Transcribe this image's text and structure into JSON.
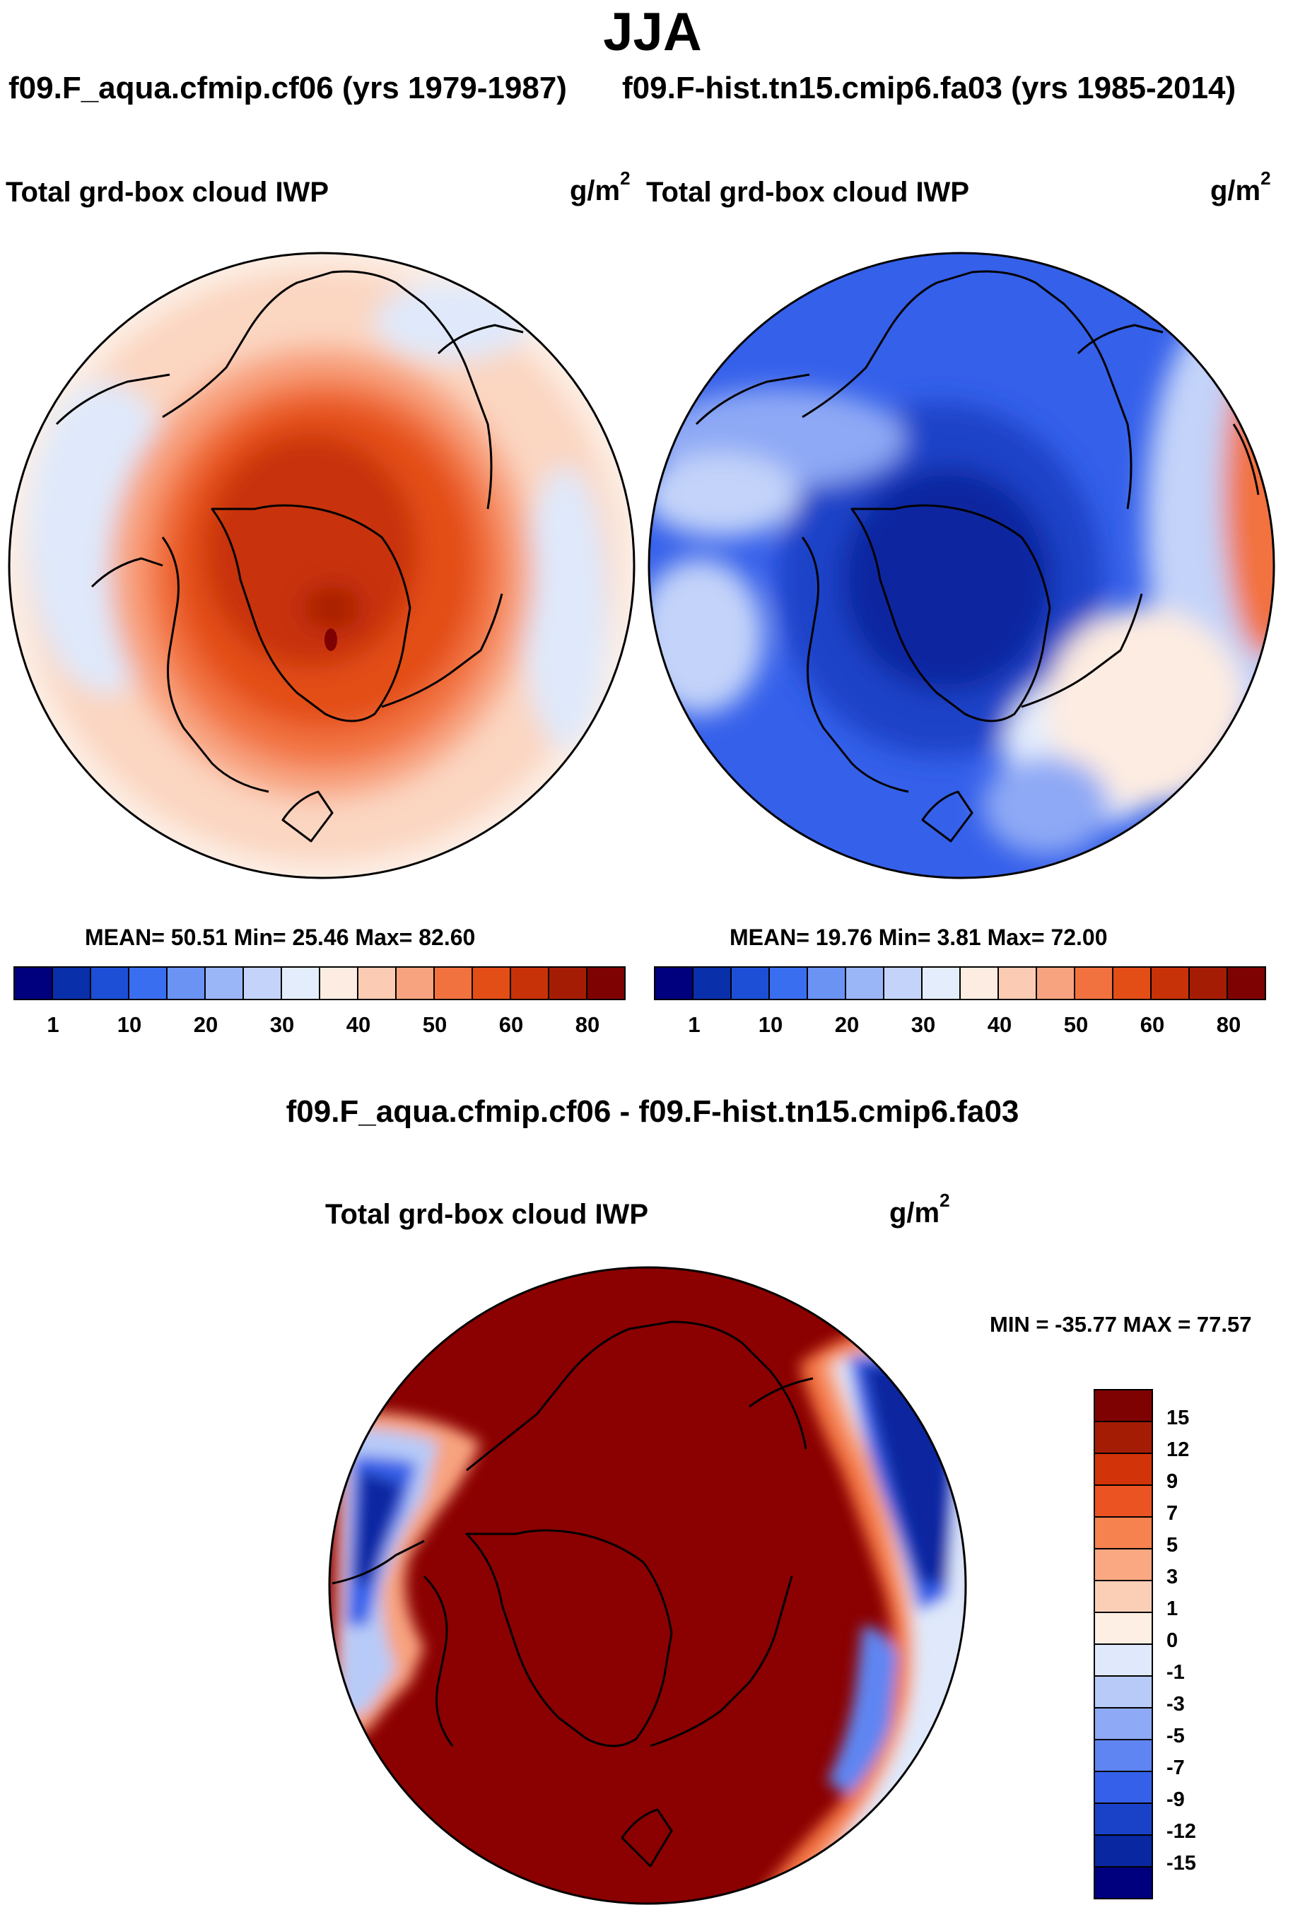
{
  "figure_title": "JJA",
  "left_panel": {
    "case": "f09.F_aqua.cfmip.cf06 (yrs 1979-1987)",
    "variable": "Total grd-box cloud IWP",
    "units_base": "g/m",
    "units_exp": "2",
    "stats": "MEAN=  50.51  Min=  25.46  Max=  82.60"
  },
  "right_panel": {
    "case": "f09.F-hist.tn15.cmip6.fa03 (yrs 1985-2014)",
    "variable": "Total grd-box cloud IWP",
    "units_base": "g/m",
    "units_exp": "2",
    "stats": "MEAN=  19.76  Min=   3.81  Max=  72.00"
  },
  "abs_colorbar": {
    "colors": [
      "#00007f",
      "#0a2faa",
      "#1c4fd6",
      "#3a6ef0",
      "#6b93f4",
      "#9bb6f7",
      "#c3d3f9",
      "#e4edfc",
      "#fdece1",
      "#fbcbb3",
      "#f8a37f",
      "#f2723f",
      "#e34d16",
      "#c83208",
      "#a51c05",
      "#7e0201"
    ],
    "ticks": [
      "1",
      "10",
      "20",
      "30",
      "40",
      "50",
      "60",
      "80"
    ]
  },
  "diff_panel": {
    "title": "f09.F_aqua.cfmip.cf06 - f09.F-hist.tn15.cmip6.fa03",
    "variable": "Total grd-box cloud IWP",
    "units_base": "g/m",
    "units_exp": "2",
    "minmax": "MIN = -35.77 MAX =  77.57"
  },
  "diff_colorbar": {
    "colors": [
      "#7e0201",
      "#a51c05",
      "#d33308",
      "#ec5322",
      "#f5824f",
      "#f9a882",
      "#fbcfb6",
      "#fdefe3",
      "#dfe9fb",
      "#b8cbf8",
      "#8ea9f5",
      "#5f85f2",
      "#3560ea",
      "#1a42c8",
      "#0827a0",
      "#00007f"
    ],
    "labels": [
      "15",
      "12",
      "9",
      "7",
      "5",
      "3",
      "1",
      "0",
      "-1",
      "-3",
      "-5",
      "-7",
      "-9",
      "-12",
      "-15"
    ]
  },
  "chart_data": [
    {
      "type": "heatmap",
      "title": "Total grd-box cloud IWP",
      "subtitle": "f09.F_aqua.cfmip.cf06 (yrs 1979-1987)",
      "units": "g/m^2",
      "projection": "north polar stereographic",
      "mean": 50.51,
      "min": 25.46,
      "max": 82.6,
      "levels": [
        "1",
        "10",
        "20",
        "30",
        "40",
        "50",
        "60",
        "80"
      ]
    },
    {
      "type": "heatmap",
      "title": "Total grd-box cloud IWP",
      "subtitle": "f09.F-hist.tn15.cmip6.fa03 (yrs 1985-2014)",
      "units": "g/m^2",
      "projection": "north polar stereographic",
      "mean": 19.76,
      "min": 3.81,
      "max": 72.0,
      "levels": [
        "1",
        "10",
        "20",
        "30",
        "40",
        "50",
        "60",
        "80"
      ]
    },
    {
      "type": "heatmap",
      "title": "Total grd-box cloud IWP",
      "subtitle": "f09.F_aqua.cfmip.cf06 - f09.F-hist.tn15.cmip6.fa03",
      "units": "g/m^2",
      "projection": "north polar stereographic",
      "min": -35.77,
      "max": 77.57,
      "levels": [
        "15",
        "12",
        "9",
        "7",
        "5",
        "3",
        "1",
        "0",
        "-1",
        "-3",
        "-5",
        "-7",
        "-9",
        "-12",
        "-15"
      ]
    }
  ]
}
